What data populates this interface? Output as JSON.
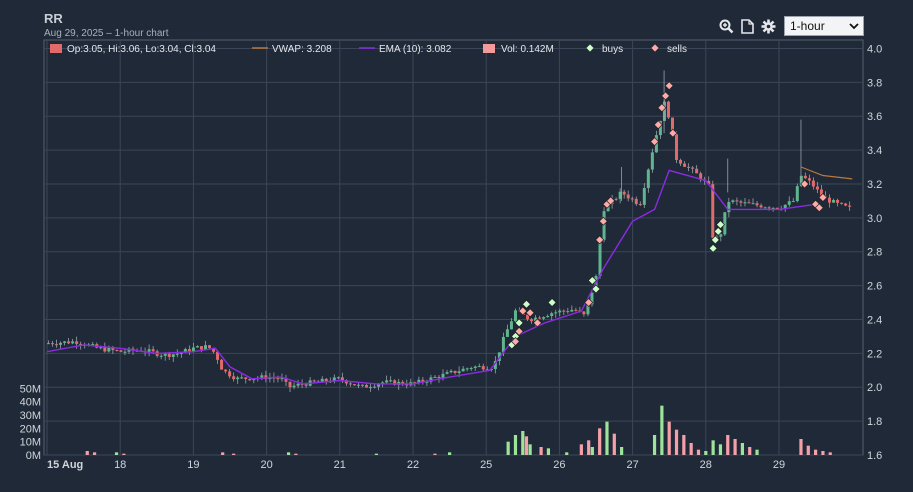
{
  "header": {
    "title": "RR",
    "subtitle": "Aug 29, 2025 – 1-hour chart"
  },
  "toolbar": {
    "icons": [
      "zoom-icon",
      "document-icon",
      "gear-icon"
    ],
    "interval": {
      "selected": "1-hour"
    }
  },
  "colors": {
    "background": "#1f2937",
    "grid": "#3b4658",
    "up": "#5fb58d",
    "down": "#e16b6b",
    "vwap": "#b9793f",
    "ema": "#8a2be2",
    "buys": "#ccffcc",
    "sells": "#ffaaaa"
  },
  "chart_data": {
    "type": "candlestick",
    "legend": {
      "ohlc": "Op:3.05, Hi:3.06, Lo:3.04, Cl:3.04",
      "vwap": "VWAP: 3.208",
      "ema": "EMA (10): 3.082",
      "vol": "Vol: 0.142M",
      "buys": "buys",
      "sells": "sells"
    },
    "x_ticks": [
      "15 Aug",
      "18",
      "19",
      "20",
      "21",
      "22",
      "25",
      "26",
      "27",
      "28",
      "29"
    ],
    "price_axis": {
      "ylim": [
        1.6,
        4.05
      ],
      "ticks": [
        "1.6",
        "1.8",
        "2.0",
        "2.2",
        "2.4",
        "2.6",
        "2.8",
        "3.0",
        "3.2",
        "3.4",
        "3.6",
        "3.8",
        "4.0"
      ]
    },
    "volume_axis": {
      "ylim": [
        0,
        60
      ],
      "unit": "M",
      "ticks": [
        "0M",
        "10M",
        "20M",
        "30M",
        "40M",
        "50M"
      ]
    },
    "ema_10": [
      [
        0,
        2.21
      ],
      [
        0.5,
        2.25
      ],
      [
        1,
        2.23
      ],
      [
        1.5,
        2.2
      ],
      [
        2,
        2.21
      ],
      [
        2.3,
        2.23
      ],
      [
        2.5,
        2.12
      ],
      [
        2.8,
        2.05
      ],
      [
        3.2,
        2.06
      ],
      [
        3.5,
        2.02
      ],
      [
        4,
        2.04
      ],
      [
        4.5,
        2.02
      ],
      [
        5,
        2.02
      ],
      [
        5.5,
        2.06
      ],
      [
        6.05,
        2.1
      ],
      [
        6.4,
        2.3
      ],
      [
        6.8,
        2.38
      ],
      [
        7.3,
        2.45
      ],
      [
        7.6,
        2.7
      ],
      [
        8,
        2.98
      ],
      [
        8.3,
        3.05
      ],
      [
        8.5,
        3.28
      ],
      [
        9,
        3.22
      ],
      [
        9.3,
        3.05
      ],
      [
        10,
        3.05
      ],
      [
        10.5,
        3.08
      ]
    ],
    "vwap": [
      [
        10.3,
        3.3
      ],
      [
        10.6,
        3.25
      ],
      [
        11,
        3.23
      ]
    ],
    "close_path": [
      [
        0,
        2.26
      ],
      [
        0.4,
        2.27
      ],
      [
        0.7,
        2.23
      ],
      [
        1,
        2.21
      ],
      [
        1.3,
        2.22
      ],
      [
        1.6,
        2.19
      ],
      [
        1.8,
        2.2
      ],
      [
        2,
        2.23
      ],
      [
        2.2,
        2.24
      ],
      [
        2.3,
        2.2
      ],
      [
        2.4,
        2.1
      ],
      [
        2.6,
        2.05
      ],
      [
        3,
        2.06
      ],
      [
        3.2,
        2.05
      ],
      [
        3.3,
        2.0
      ],
      [
        3.5,
        2.02
      ],
      [
        4,
        2.05
      ],
      [
        4.3,
        2.0
      ],
      [
        4.6,
        2.03
      ],
      [
        5,
        2.02
      ],
      [
        5.4,
        2.07
      ],
      [
        5.8,
        2.12
      ],
      [
        6.1,
        2.12
      ],
      [
        6.25,
        2.3
      ],
      [
        6.4,
        2.45
      ],
      [
        6.6,
        2.4
      ],
      [
        6.9,
        2.44
      ],
      [
        7.2,
        2.46
      ],
      [
        7.35,
        2.42
      ],
      [
        7.5,
        2.65
      ],
      [
        7.6,
        3.05
      ],
      [
        7.85,
        3.15
      ],
      [
        8.1,
        3.08
      ],
      [
        8.3,
        3.45
      ],
      [
        8.45,
        3.7
      ],
      [
        8.6,
        3.35
      ],
      [
        8.9,
        3.25
      ],
      [
        9.05,
        3.18
      ],
      [
        9.1,
        2.86
      ],
      [
        9.2,
        2.9
      ],
      [
        9.3,
        3.1
      ],
      [
        9.6,
        3.08
      ],
      [
        10,
        3.06
      ],
      [
        10.2,
        3.1
      ],
      [
        10.3,
        3.25
      ],
      [
        10.45,
        3.2
      ],
      [
        10.6,
        3.12
      ],
      [
        10.8,
        3.08
      ],
      [
        11,
        3.05
      ]
    ],
    "buys": [
      [
        6.35,
        2.25
      ],
      [
        6.4,
        2.3
      ],
      [
        6.45,
        2.38
      ],
      [
        6.5,
        2.45
      ],
      [
        6.55,
        2.49
      ],
      [
        6.9,
        2.5
      ],
      [
        7.45,
        2.63
      ],
      [
        7.5,
        2.58
      ],
      [
        9.1,
        2.82
      ],
      [
        9.13,
        2.87
      ],
      [
        9.17,
        2.92
      ],
      [
        9.2,
        2.96
      ]
    ],
    "sells": [
      [
        6.4,
        2.27
      ],
      [
        6.45,
        2.33
      ],
      [
        6.5,
        2.45
      ],
      [
        6.6,
        2.44
      ],
      [
        6.7,
        2.38
      ],
      [
        7.4,
        2.5
      ],
      [
        7.55,
        2.87
      ],
      [
        7.6,
        2.98
      ],
      [
        7.65,
        3.08
      ],
      [
        7.7,
        3.1
      ],
      [
        8.3,
        3.45
      ],
      [
        8.35,
        3.55
      ],
      [
        8.4,
        3.65
      ],
      [
        8.45,
        3.72
      ],
      [
        8.5,
        3.78
      ],
      [
        8.55,
        3.5
      ],
      [
        10.35,
        3.2
      ],
      [
        10.5,
        3.08
      ],
      [
        10.55,
        3.06
      ],
      [
        10.6,
        3.12
      ]
    ],
    "volume_bars": [
      [
        0.55,
        3,
        "down"
      ],
      [
        0.65,
        2,
        "down"
      ],
      [
        0.95,
        2,
        "up"
      ],
      [
        1.05,
        1,
        "down"
      ],
      [
        2.4,
        2,
        "down"
      ],
      [
        2.55,
        1,
        "down"
      ],
      [
        3.3,
        2,
        "up"
      ],
      [
        3.4,
        1,
        "down"
      ],
      [
        4.5,
        1,
        "up"
      ],
      [
        5.3,
        1,
        "down"
      ],
      [
        5.5,
        2,
        "up"
      ],
      [
        6.3,
        10,
        "up"
      ],
      [
        6.4,
        15,
        "up"
      ],
      [
        6.5,
        18,
        "up"
      ],
      [
        6.55,
        14,
        "down"
      ],
      [
        6.6,
        8,
        "up"
      ],
      [
        6.75,
        6,
        "down"
      ],
      [
        6.85,
        5,
        "up"
      ],
      [
        7.1,
        2,
        "up"
      ],
      [
        7.3,
        8,
        "down"
      ],
      [
        7.4,
        11,
        "down"
      ],
      [
        7.45,
        6,
        "up"
      ],
      [
        7.55,
        20,
        "down"
      ],
      [
        7.65,
        25,
        "up"
      ],
      [
        7.75,
        16,
        "down"
      ],
      [
        7.85,
        6,
        "up"
      ],
      [
        8.3,
        15,
        "up"
      ],
      [
        8.4,
        37,
        "up"
      ],
      [
        8.5,
        25,
        "down"
      ],
      [
        8.6,
        19,
        "down"
      ],
      [
        8.7,
        15,
        "down"
      ],
      [
        8.8,
        9,
        "down"
      ],
      [
        8.9,
        4,
        "down"
      ],
      [
        9.0,
        3,
        "up"
      ],
      [
        9.1,
        11,
        "up"
      ],
      [
        9.2,
        8,
        "up"
      ],
      [
        9.3,
        15,
        "down"
      ],
      [
        9.4,
        12,
        "down"
      ],
      [
        9.5,
        9,
        "up"
      ],
      [
        9.6,
        6,
        "down"
      ],
      [
        9.7,
        4,
        "up"
      ],
      [
        10.3,
        12,
        "down"
      ],
      [
        10.4,
        7,
        "down"
      ],
      [
        10.5,
        4,
        "down"
      ],
      [
        10.6,
        3,
        "down"
      ],
      [
        10.7,
        2,
        "down"
      ]
    ]
  }
}
